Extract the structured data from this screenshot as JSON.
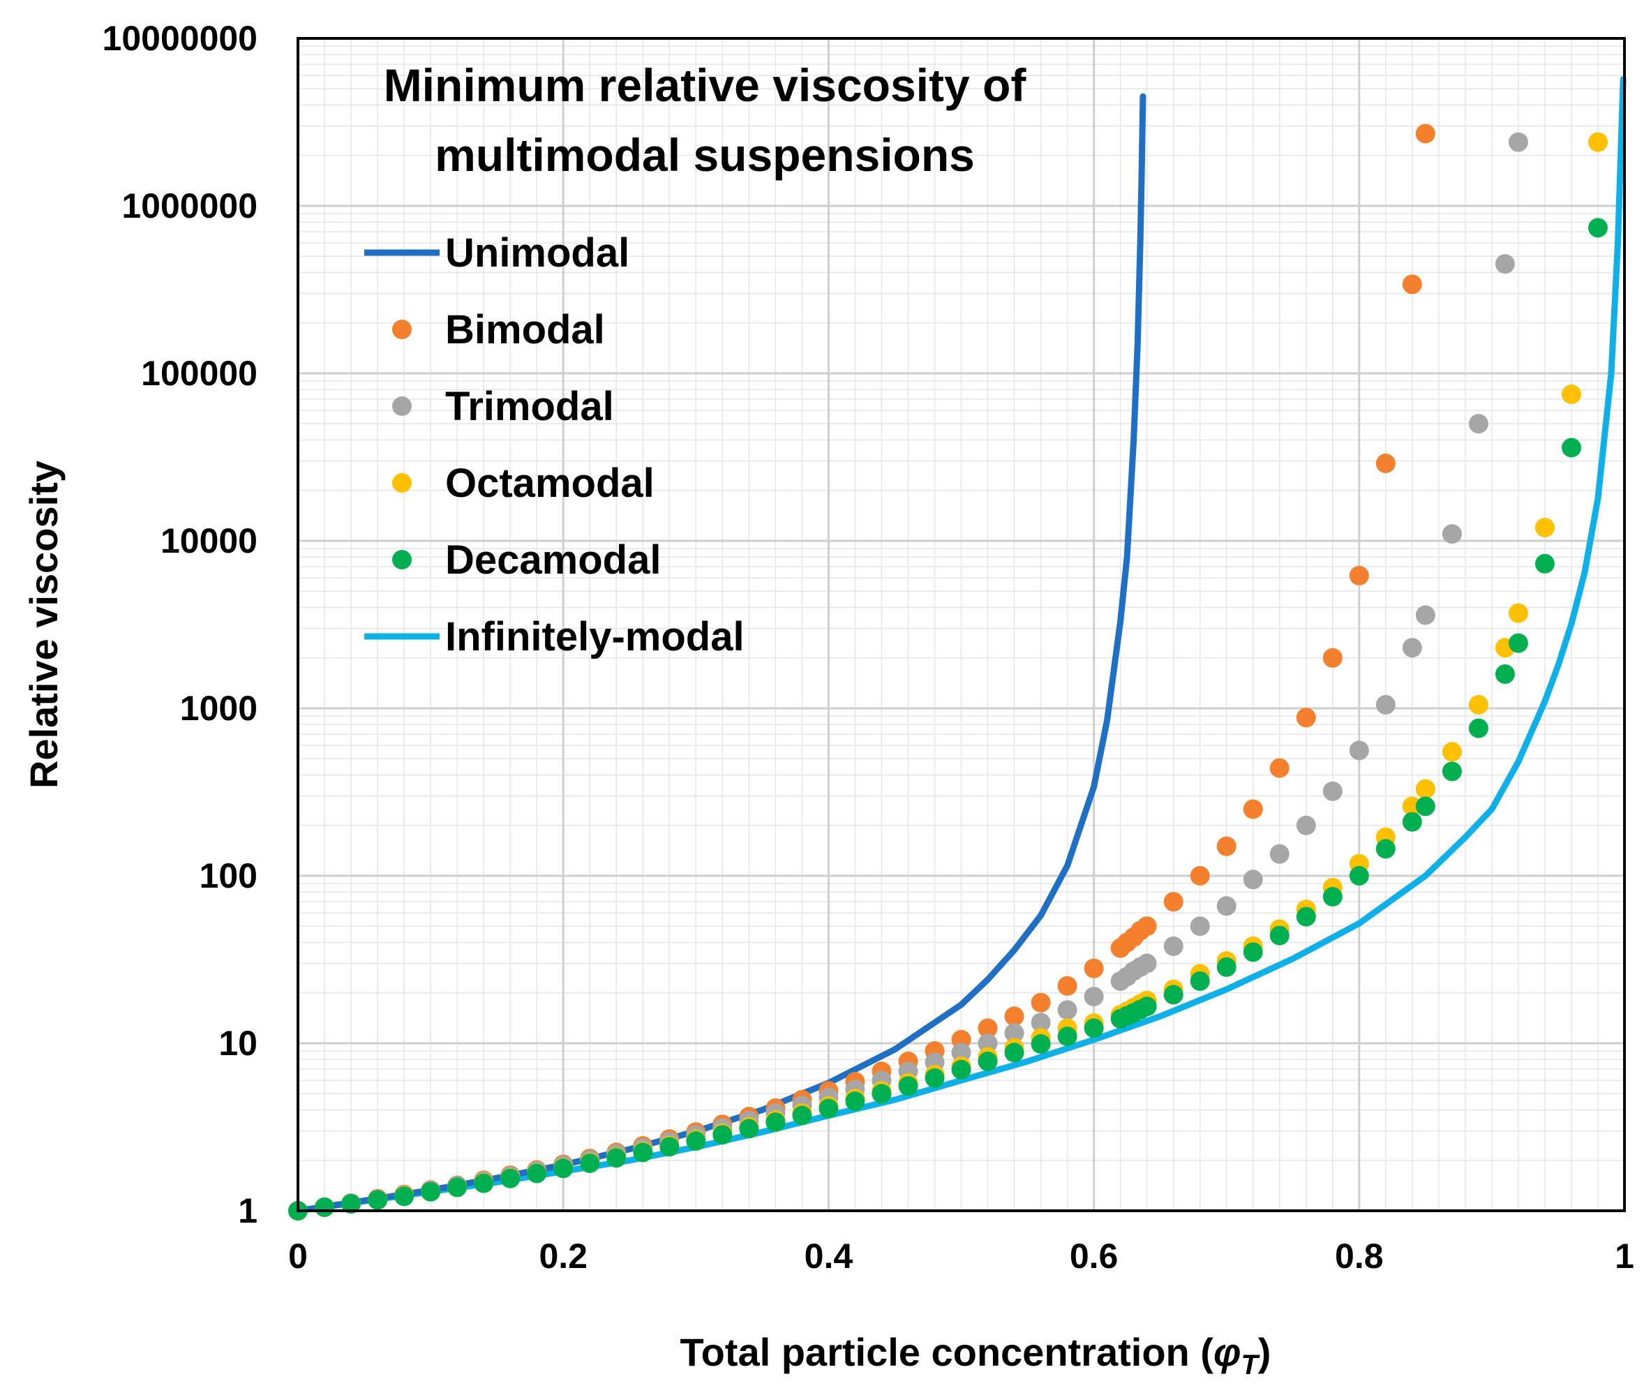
{
  "chart_data": {
    "type": "scatter",
    "title_lines": [
      "Minimum relative viscosity of",
      "multimodal suspensions"
    ],
    "xlabel_prefix": "Total particle concentration (",
    "xlabel_symbol": "φ",
    "xlabel_subscript": "T",
    "xlabel_suffix": ")",
    "ylabel": "Relative viscosity",
    "xlim": [
      0,
      1
    ],
    "ylim": [
      1,
      10000000
    ],
    "yscale": "log",
    "grid": true,
    "legend_position": "top-left",
    "x_ticks": [
      "0",
      "0.2",
      "0.4",
      "0.6",
      "0.8",
      "1"
    ],
    "x_tick_values": [
      0,
      0.2,
      0.4,
      0.6,
      0.8,
      1.0
    ],
    "y_ticks": [
      "1",
      "10",
      "100",
      "1000",
      "10000",
      "100000",
      "1000000",
      "10000000"
    ],
    "y_tick_values": [
      1,
      10,
      100,
      1000,
      10000,
      100000,
      1000000,
      10000000
    ],
    "series": [
      {
        "name": "Unimodal",
        "style": "line",
        "color": "#1f6fc4",
        "x": [
          0,
          0.05,
          0.1,
          0.15,
          0.2,
          0.25,
          0.3,
          0.35,
          0.4,
          0.45,
          0.5,
          0.52,
          0.54,
          0.56,
          0.58,
          0.6,
          0.61,
          0.62,
          0.625,
          0.63,
          0.633,
          0.635,
          0.636,
          0.637
        ],
        "y": [
          1,
          1.15,
          1.33,
          1.57,
          1.88,
          2.33,
          2.98,
          4.0,
          5.8,
          9.2,
          17,
          24,
          36,
          58,
          115,
          340,
          850,
          3300,
          8000,
          40000,
          150000,
          600000,
          1500000,
          4500000
        ]
      },
      {
        "name": "Bimodal",
        "style": "points",
        "color": "#f47f2c",
        "x": [
          0,
          0.02,
          0.04,
          0.06,
          0.08,
          0.1,
          0.12,
          0.14,
          0.16,
          0.18,
          0.2,
          0.22,
          0.24,
          0.26,
          0.28,
          0.3,
          0.32,
          0.34,
          0.36,
          0.38,
          0.4,
          0.42,
          0.44,
          0.46,
          0.48,
          0.5,
          0.52,
          0.54,
          0.56,
          0.58,
          0.6,
          0.62,
          0.625,
          0.63,
          0.635,
          0.64,
          0.66,
          0.68,
          0.7,
          0.72,
          0.74,
          0.76,
          0.78,
          0.8,
          0.82,
          0.84,
          0.85
        ],
        "y": [
          1,
          1.05,
          1.11,
          1.18,
          1.25,
          1.33,
          1.42,
          1.52,
          1.63,
          1.75,
          1.89,
          2.05,
          2.23,
          2.44,
          2.68,
          2.95,
          3.28,
          3.65,
          4.1,
          4.6,
          5.2,
          5.9,
          6.8,
          7.8,
          9.0,
          10.5,
          12.3,
          14.5,
          17.5,
          22,
          28,
          37,
          40,
          43,
          47,
          50,
          70,
          100,
          150,
          250,
          440,
          880,
          2000,
          6200,
          29000,
          340000,
          2700000
        ]
      },
      {
        "name": "Trimodal",
        "style": "points",
        "color": "#a6a6a6",
        "x": [
          0,
          0.02,
          0.04,
          0.06,
          0.08,
          0.1,
          0.12,
          0.14,
          0.16,
          0.18,
          0.2,
          0.22,
          0.24,
          0.26,
          0.28,
          0.3,
          0.32,
          0.34,
          0.36,
          0.38,
          0.4,
          0.42,
          0.44,
          0.46,
          0.48,
          0.5,
          0.52,
          0.54,
          0.56,
          0.58,
          0.6,
          0.62,
          0.625,
          0.63,
          0.635,
          0.64,
          0.66,
          0.68,
          0.7,
          0.72,
          0.74,
          0.76,
          0.78,
          0.8,
          0.82,
          0.84,
          0.85,
          0.87,
          0.89,
          0.91,
          0.92
        ],
        "y": [
          1,
          1.05,
          1.11,
          1.17,
          1.24,
          1.32,
          1.41,
          1.5,
          1.61,
          1.73,
          1.86,
          2.01,
          2.18,
          2.37,
          2.59,
          2.84,
          3.12,
          3.45,
          3.83,
          4.25,
          4.75,
          5.3,
          6.0,
          6.8,
          7.7,
          8.8,
          10,
          11.5,
          13.3,
          15.8,
          19,
          23.5,
          25,
          27,
          28.5,
          30,
          38,
          50,
          66,
          95,
          135,
          200,
          320,
          560,
          1050,
          2300,
          3600,
          11000,
          50000,
          450000,
          2400000
        ]
      },
      {
        "name": "Octamodal",
        "style": "points",
        "color": "#ffc000",
        "x": [
          0,
          0.02,
          0.04,
          0.06,
          0.08,
          0.1,
          0.12,
          0.14,
          0.16,
          0.18,
          0.2,
          0.22,
          0.24,
          0.26,
          0.28,
          0.3,
          0.32,
          0.34,
          0.36,
          0.38,
          0.4,
          0.42,
          0.44,
          0.46,
          0.48,
          0.5,
          0.52,
          0.54,
          0.56,
          0.58,
          0.6,
          0.62,
          0.625,
          0.63,
          0.635,
          0.64,
          0.66,
          0.68,
          0.7,
          0.72,
          0.74,
          0.76,
          0.78,
          0.8,
          0.82,
          0.84,
          0.85,
          0.87,
          0.89,
          0.91,
          0.92,
          0.94,
          0.96,
          0.98
        ],
        "y": [
          1,
          1.05,
          1.1,
          1.16,
          1.23,
          1.3,
          1.38,
          1.47,
          1.57,
          1.68,
          1.8,
          1.94,
          2.09,
          2.26,
          2.45,
          2.66,
          2.9,
          3.17,
          3.48,
          3.83,
          4.22,
          4.68,
          5.2,
          5.8,
          6.5,
          7.3,
          8.3,
          9.4,
          10.8,
          12.3,
          13.2,
          14.8,
          15.5,
          16.3,
          17.2,
          18,
          21,
          26,
          31,
          38,
          48,
          63,
          85,
          118,
          170,
          260,
          330,
          550,
          1050,
          2300,
          3700,
          12000,
          75000,
          2400000
        ]
      },
      {
        "name": "Decamodal",
        "style": "points",
        "color": "#00b050",
        "x": [
          0,
          0.02,
          0.04,
          0.06,
          0.08,
          0.1,
          0.12,
          0.14,
          0.16,
          0.18,
          0.2,
          0.22,
          0.24,
          0.26,
          0.28,
          0.3,
          0.32,
          0.34,
          0.36,
          0.38,
          0.4,
          0.42,
          0.44,
          0.46,
          0.48,
          0.5,
          0.52,
          0.54,
          0.56,
          0.58,
          0.6,
          0.62,
          0.625,
          0.63,
          0.635,
          0.64,
          0.66,
          0.68,
          0.7,
          0.72,
          0.74,
          0.76,
          0.78,
          0.8,
          0.82,
          0.84,
          0.85,
          0.87,
          0.89,
          0.91,
          0.92,
          0.94,
          0.96,
          0.98
        ],
        "y": [
          1,
          1.05,
          1.1,
          1.16,
          1.22,
          1.3,
          1.38,
          1.46,
          1.56,
          1.67,
          1.79,
          1.92,
          2.07,
          2.23,
          2.41,
          2.61,
          2.84,
          3.09,
          3.38,
          3.71,
          4.08,
          4.51,
          5.0,
          5.56,
          6.2,
          6.96,
          7.8,
          8.8,
          9.9,
          11,
          12.3,
          14,
          14.6,
          15.2,
          15.9,
          16.6,
          19.5,
          23.5,
          28.5,
          35,
          44,
          57,
          75,
          100,
          145,
          210,
          260,
          420,
          760,
          1600,
          2450,
          7300,
          36000,
          740000
        ]
      },
      {
        "name": "Infinitely-modal",
        "style": "line",
        "color": "#0fb0e8",
        "x": [
          0,
          0.05,
          0.1,
          0.15,
          0.2,
          0.25,
          0.3,
          0.35,
          0.4,
          0.45,
          0.5,
          0.55,
          0.6,
          0.65,
          0.7,
          0.75,
          0.8,
          0.85,
          0.88,
          0.9,
          0.92,
          0.94,
          0.95,
          0.96,
          0.97,
          0.98,
          0.99,
          0.995,
          0.999
        ],
        "y": [
          1,
          1.14,
          1.3,
          1.48,
          1.72,
          2.0,
          2.4,
          2.95,
          3.7,
          4.6,
          6.0,
          7.8,
          10.5,
          14.5,
          21,
          32,
          52,
          100,
          170,
          250,
          480,
          1100,
          1800,
          3200,
          6500,
          18000,
          100000,
          600000,
          5700000
        ]
      }
    ]
  }
}
